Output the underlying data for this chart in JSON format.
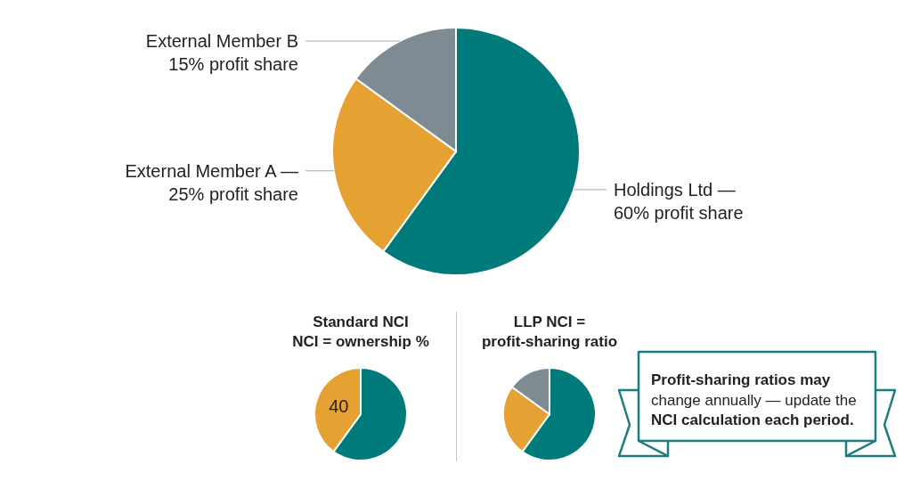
{
  "chart_data": [
    {
      "type": "pie",
      "categories": [
        "Holdings Ltd —",
        "External Member A —",
        "External Member B"
      ],
      "values": [
        60,
        25,
        15
      ],
      "colors": [
        "#017a7c",
        "#e5a132",
        "#7e8b92"
      ],
      "value_labels": [
        "60% profit share",
        "25% profit share",
        "15% profit share"
      ]
    },
    {
      "type": "pie",
      "title": "Standard NCI",
      "subtitle": "NCI = ownership %",
      "categories": [
        null,
        null
      ],
      "values": [
        60,
        40
      ],
      "colors": [
        "#017a7c",
        "#e5a132"
      ],
      "value_labels": [
        null,
        "40"
      ]
    },
    {
      "type": "pie",
      "title": "LLP NCI =",
      "subtitle": "profit-sharing ratio",
      "categories": [
        null,
        null,
        null
      ],
      "values": [
        60,
        25,
        15
      ],
      "colors": [
        "#017a7c",
        "#e5a132",
        "#7e8b92"
      ]
    },
    {
      "type": "other",
      "annotations": [
        "Profit-sharing ratios may",
        "change annually — update the",
        "NCI calculation each period."
      ]
    }
  ]
}
